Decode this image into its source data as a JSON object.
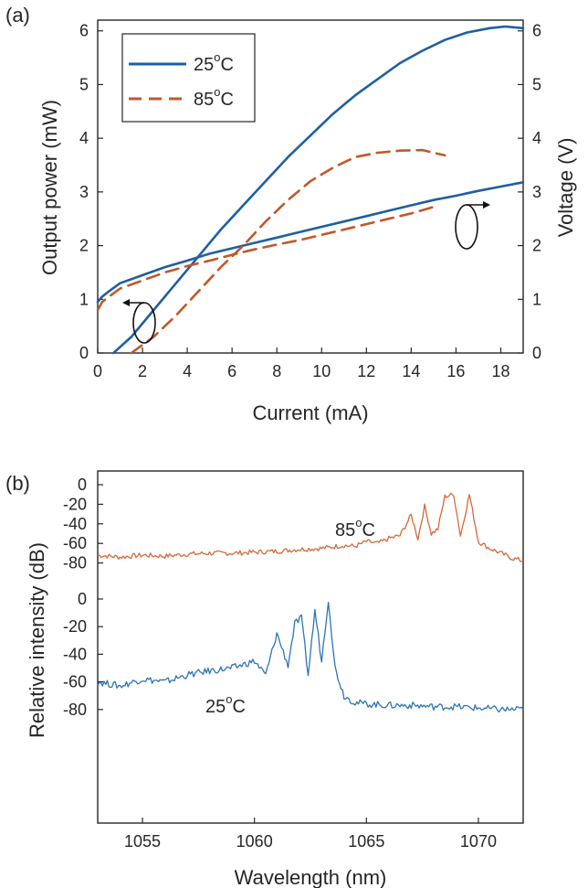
{
  "chart_data": [
    {
      "panel": "(a)",
      "type": "line",
      "xlabel": "Current (mA)",
      "ylabel": "Output power (mW)",
      "ylabel_right": "Voltage (V)",
      "xlim": [
        0,
        19
      ],
      "ylim": [
        0,
        6.2
      ],
      "ylim_right": [
        0,
        6.2
      ],
      "xticks": [
        "0",
        "2",
        "4",
        "6",
        "8",
        "10",
        "12",
        "14",
        "16",
        "18"
      ],
      "yticks": [
        "0",
        "1",
        "2",
        "3",
        "4",
        "5",
        "6"
      ],
      "yticks_right": [
        "0",
        "1",
        "2",
        "3",
        "4",
        "5",
        "6"
      ],
      "legend": {
        "position": "top-left",
        "entries": [
          {
            "label": "25",
            "suffix": "C",
            "style": "solid",
            "color": "#1f5fa0"
          },
          {
            "label": "85",
            "suffix": "C",
            "style": "dashed",
            "color": "#c0582a"
          }
        ]
      },
      "series": [
        {
          "name": "25°C power",
          "axis": "left",
          "style": "solid",
          "color": "#1f5fa0",
          "x": [
            0.7,
            1.5,
            2.5,
            3.5,
            4.5,
            5.5,
            6.5,
            7.5,
            8.5,
            9.5,
            10.5,
            11.5,
            12.5,
            13.5,
            14.5,
            15.5,
            16.5,
            17.5,
            18.2,
            19
          ],
          "y": [
            0,
            0.3,
            0.8,
            1.3,
            1.8,
            2.3,
            2.75,
            3.2,
            3.65,
            4.05,
            4.45,
            4.8,
            5.1,
            5.4,
            5.63,
            5.83,
            5.97,
            6.05,
            6.08,
            6.05
          ]
        },
        {
          "name": "25°C voltage",
          "axis": "right",
          "style": "solid",
          "color": "#1f5fa0",
          "x": [
            0,
            0.2,
            0.5,
            1,
            2,
            3,
            4,
            5,
            6,
            7,
            8,
            9,
            10,
            11,
            12,
            13,
            14,
            15,
            16,
            17,
            18,
            19
          ],
          "y": [
            0.95,
            1.05,
            1.15,
            1.3,
            1.45,
            1.6,
            1.72,
            1.85,
            1.95,
            2.05,
            2.15,
            2.25,
            2.35,
            2.45,
            2.55,
            2.65,
            2.75,
            2.85,
            2.93,
            3.02,
            3.1,
            3.18
          ]
        },
        {
          "name": "85°C power",
          "axis": "left",
          "style": "dashed",
          "color": "#c0582a",
          "x": [
            1.5,
            2.5,
            3.5,
            4.5,
            5.5,
            6.5,
            7.5,
            8.5,
            9.5,
            10.5,
            11.5,
            12.5,
            13.5,
            14.5,
            15.5
          ],
          "y": [
            0,
            0.3,
            0.7,
            1.15,
            1.6,
            2.0,
            2.45,
            2.85,
            3.2,
            3.45,
            3.65,
            3.73,
            3.77,
            3.78,
            3.68
          ]
        },
        {
          "name": "85°C voltage",
          "axis": "right",
          "style": "dashed",
          "color": "#c0582a",
          "x": [
            0,
            0.2,
            0.5,
            1,
            2,
            3,
            4,
            5,
            6,
            7,
            8,
            9,
            10,
            11,
            12,
            13,
            14,
            15
          ],
          "y": [
            0.8,
            0.95,
            1.05,
            1.2,
            1.35,
            1.5,
            1.62,
            1.72,
            1.83,
            1.93,
            2.02,
            2.1,
            2.2,
            2.3,
            2.4,
            2.5,
            2.6,
            2.72
          ]
        }
      ],
      "annotations": [
        {
          "text": "arrow-left",
          "meaning": "power curves read on left axis",
          "x": 2.0,
          "y": 0.55
        },
        {
          "text": "arrow-right",
          "meaning": "voltage curves read on right axis",
          "x": 15.0,
          "y": 2.8
        }
      ]
    },
    {
      "panel": "(b)",
      "type": "line",
      "xlabel": "Wavelength (nm)",
      "ylabel": "Relative intensity (dB)",
      "xlim": [
        1053,
        1072
      ],
      "xticks": [
        "1055",
        "1060",
        "1065",
        "1070"
      ],
      "yticks_upper": [
        "0",
        "-20",
        "-40",
        "-60",
        "-80"
      ],
      "yticks_lower": [
        "0",
        "-20",
        "-40",
        "-60",
        "-80"
      ],
      "series": [
        {
          "name": "85°C",
          "color": "#d4693a",
          "offset_group": "upper",
          "x": [
            1053,
            1054,
            1055,
            1056,
            1057,
            1058,
            1059,
            1060,
            1061,
            1062,
            1063,
            1064,
            1064.5,
            1065,
            1065.5,
            1066,
            1066.5,
            1067,
            1067.3,
            1067.6,
            1067.9,
            1068.2,
            1068.5,
            1068.9,
            1069.2,
            1069.6,
            1070,
            1070.5,
            1071,
            1071.5,
            1072
          ],
          "y": [
            -72,
            -74,
            -72,
            -73,
            -71,
            -70,
            -70,
            -69,
            -68,
            -66,
            -65,
            -62,
            -63,
            -58,
            -60,
            -55,
            -52,
            -31,
            -55,
            -22,
            -50,
            -45,
            -12,
            -10,
            -52,
            -10,
            -58,
            -65,
            -70,
            -75,
            -78
          ]
        },
        {
          "name": "25°C",
          "color": "#2e74b5",
          "offset_group": "lower",
          "x": [
            1053,
            1054,
            1055,
            1056,
            1057,
            1058,
            1059,
            1060,
            1060.5,
            1061,
            1061.5,
            1061.8,
            1062.1,
            1062.4,
            1062.7,
            1063,
            1063.3,
            1063.6,
            1064,
            1064.5,
            1065,
            1066,
            1067,
            1068,
            1069,
            1070,
            1071,
            1072
          ],
          "y": [
            -60,
            -63,
            -58,
            -60,
            -55,
            -52,
            -50,
            -45,
            -55,
            -25,
            -48,
            -18,
            -14,
            -55,
            -8,
            -45,
            0,
            -50,
            -70,
            -75,
            -76,
            -77,
            -77,
            -78,
            -78,
            -79,
            -80,
            -80
          ]
        }
      ],
      "annotations": [
        {
          "text": "85",
          "suffix": "C",
          "x": 1066.3,
          "y_group": "upper",
          "y": -30
        },
        {
          "text": "25",
          "suffix": "C",
          "x": 1061.0,
          "y_group": "lower",
          "y": -30
        }
      ]
    }
  ],
  "labels": {
    "panel_a": "(a)",
    "panel_b": "(b)"
  },
  "colors": {
    "blue": "#1f5fa0",
    "orange": "#c0582a",
    "blue_b": "#2e74b5",
    "orange_b": "#d4693a"
  }
}
